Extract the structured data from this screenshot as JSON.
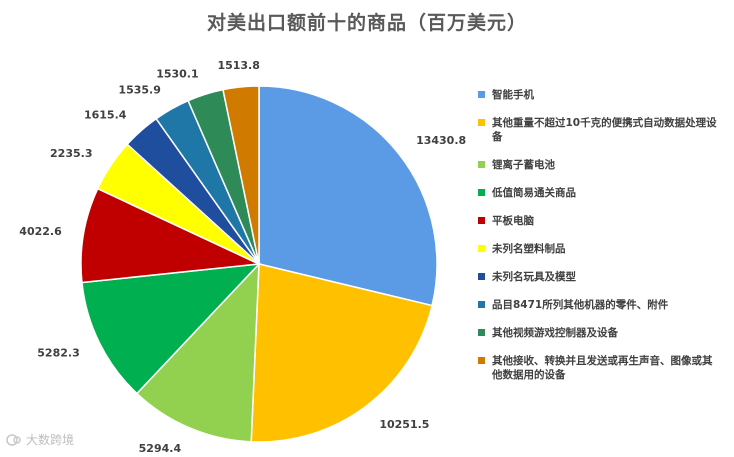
{
  "title": "对美出口额前十的商品（百万美元）",
  "watermark": "大数跨境",
  "chart_data": {
    "type": "pie",
    "title": "对美出口额前十的商品（百万美元）",
    "legend_position": "right",
    "slices": [
      {
        "label": "智能手机",
        "value": 13430.8,
        "value_label": "13430.8",
        "color": "#5B9BE5"
      },
      {
        "label": "其他重量不超过10千克的便携式自动数据处理设备",
        "value": 10251.5,
        "value_label": "10251.5",
        "color": "#FFC000"
      },
      {
        "label": "锂离子蓄电池",
        "value": 5294.4,
        "value_label": "5294.4",
        "color": "#92D050"
      },
      {
        "label": "低值简易通关商品",
        "value": 5282.3,
        "value_label": "5282.3",
        "color": "#00B050"
      },
      {
        "label": "平板电脑",
        "value": 4022.6,
        "value_label": "4022.6",
        "color": "#C00000"
      },
      {
        "label": "未列名塑料制品",
        "value": 2235.3,
        "value_label": "2235.3",
        "color": "#FFFF00"
      },
      {
        "label": "未列名玩具及模型",
        "value": 1615.4,
        "value_label": "1615.4",
        "color": "#1F4E9E"
      },
      {
        "label": "品目8471所列其他机器的零件、附件",
        "value": 1535.9,
        "value_label": "1535.9",
        "color": "#1F77A8"
      },
      {
        "label": "其他视频游戏控制器及设备",
        "value": 1530.1,
        "value_label": "1530.1",
        "color": "#2E8B57"
      },
      {
        "label": "其他接收、转换并且发送或再生声音、图像或其他数据用的设备",
        "value": 1513.8,
        "value_label": "1513.8",
        "color": "#D17A00"
      }
    ]
  }
}
